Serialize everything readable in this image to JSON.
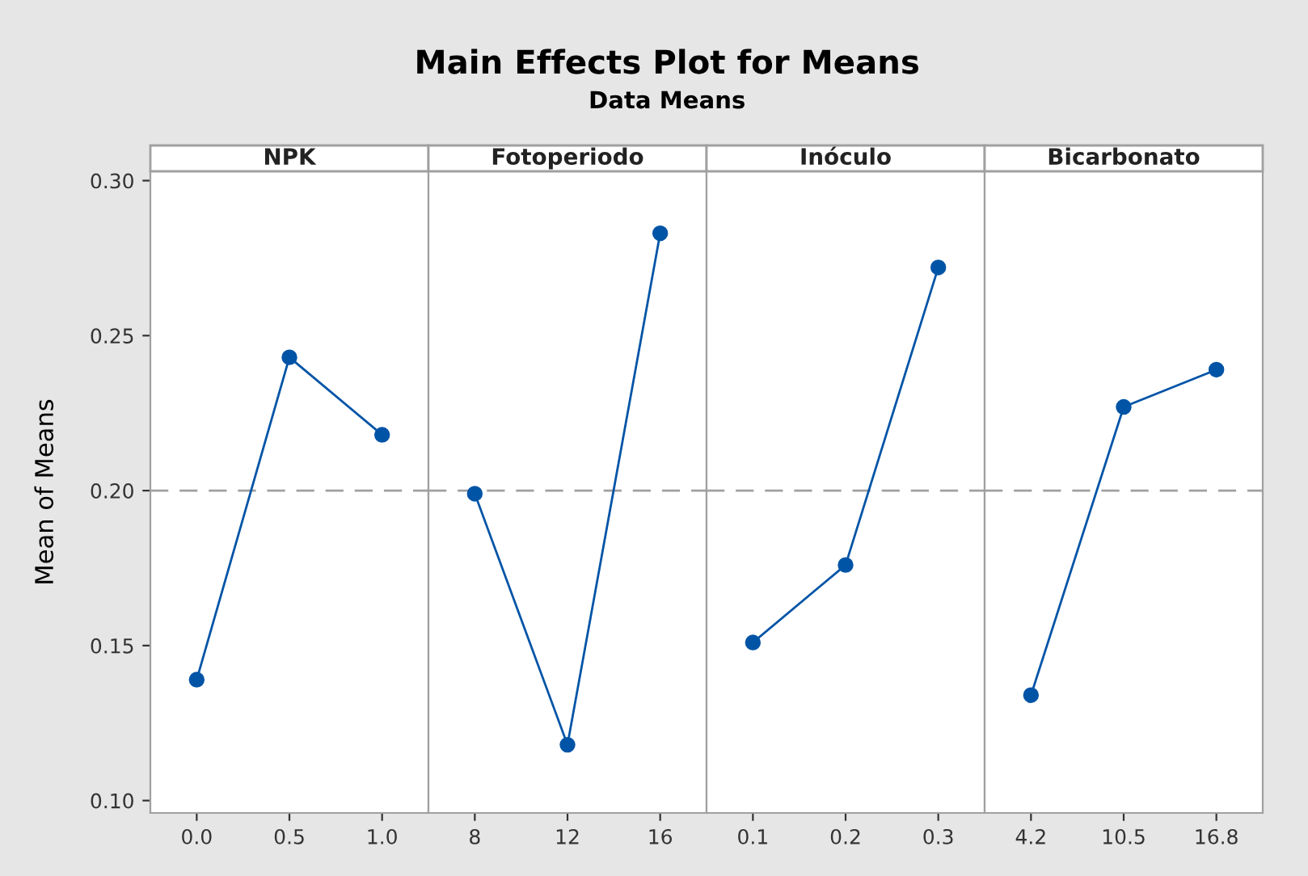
{
  "chart_data": [
    {
      "type": "line",
      "ylabel": "Mean of Means",
      "legend_title": "NPK",
      "categories": [
        "0.0",
        "0.5",
        "1.0"
      ],
      "series": [
        {
          "color": "#0054a6",
          "values": [
            0.139,
            0.243,
            0.218
          ]
        }
      ],
      "ylim": [
        0.096,
        0.303
      ],
      "yticks": [
        {
          "value": 0.1,
          "label": "0.10"
        },
        0.15,
        {
          "value": 0.2,
          "label": "0.20"
        },
        0.25,
        {
          "value": 0.3,
          "label": "0.30"
        }
      ],
      "ref_lines": [
        {
          "axis": "y",
          "value": 0.2,
          "color": "#a0a0a0",
          "line_style": "dashed"
        }
      ],
      "marker": "circle"
    },
    {
      "type": "line",
      "title": "Main Effects Plot for Means",
      "subtitle": "Data Means",
      "legend_title": "Fotoperiodo",
      "categories": [
        "8",
        "12",
        "16"
      ],
      "series": [
        {
          "color": "#0054a6",
          "values": [
            0.199,
            0.118,
            0.283
          ]
        }
      ],
      "ylim": [
        0.096,
        0.303
      ],
      "tick_labels": "x",
      "ref_lines": [
        {
          "axis": "y",
          "value": 0.2,
          "color": "#a0a0a0",
          "line_style": "dashed"
        }
      ],
      "marker": "circle"
    },
    {
      "type": "line",
      "legend_title": "Inóculo",
      "categories": [
        "0.1",
        "0.2",
        "0.3"
      ],
      "series": [
        {
          "color": "#0054a6",
          "values": [
            0.151,
            0.176,
            0.272
          ]
        }
      ],
      "ylim": [
        0.096,
        0.303
      ],
      "tick_labels": "x",
      "ref_lines": [
        {
          "axis": "y",
          "value": 0.2,
          "color": "#a0a0a0",
          "line_style": "dashed"
        }
      ],
      "marker": "circle"
    },
    {
      "type": "line",
      "legend_title": "Bicarbonato",
      "categories": [
        "4.2",
        "10.5",
        "16.8"
      ],
      "series": [
        {
          "color": "#0054a6",
          "values": [
            0.134,
            0.227,
            0.239
          ]
        }
      ],
      "ylim": [
        0.096,
        0.303
      ],
      "tick_labels": "x",
      "ref_lines": [
        {
          "axis": "y",
          "value": 0.2,
          "color": "#a0a0a0",
          "line_style": "dashed"
        }
      ],
      "marker": "circle"
    }
  ]
}
